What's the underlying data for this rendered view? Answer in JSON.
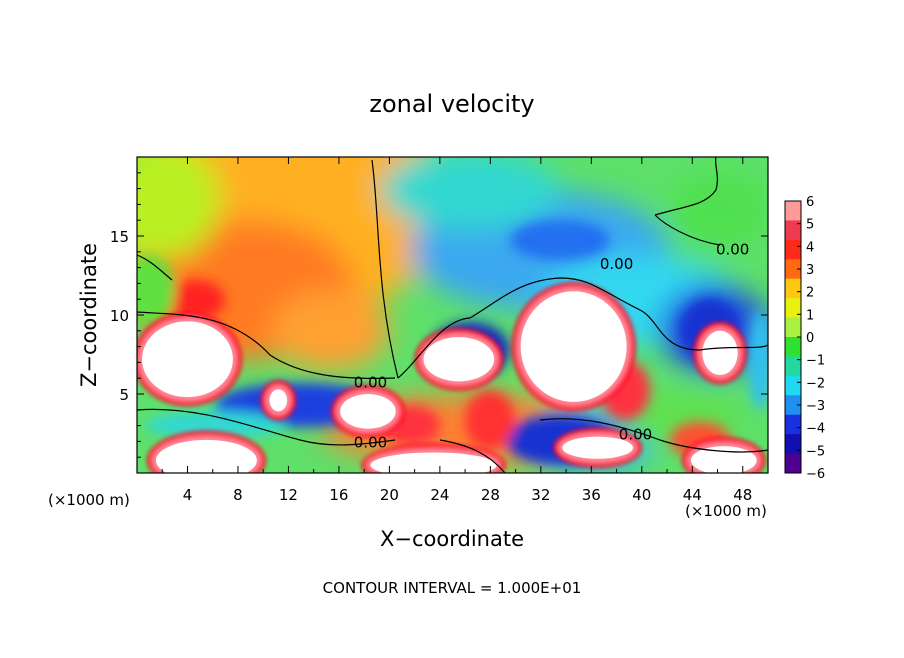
{
  "chart_data": {
    "type": "heatmap",
    "title": "zonal velocity",
    "xlabel": "X−coordinate",
    "ylabel": "Z−coordinate",
    "x_unit_left": "(×1000 m)",
    "x_unit_right": "(×1000 m)",
    "footer": "CONTOUR INTERVAL = 1.000E+01",
    "xlim": [
      0,
      50
    ],
    "ylim": [
      0,
      20
    ],
    "x_ticks": [
      4,
      8,
      12,
      16,
      20,
      24,
      28,
      32,
      36,
      40,
      44,
      48
    ],
    "y_ticks": [
      5,
      10,
      15
    ],
    "colorbar": {
      "labels": [
        "6",
        "5",
        "4",
        "3",
        "2",
        "1",
        "0",
        "−1",
        "−2",
        "−3",
        "−4",
        "−5",
        "−6"
      ],
      "levels": [
        6,
        5,
        4,
        3,
        2,
        1,
        0,
        -1,
        -2,
        -3,
        -4,
        -5,
        -6
      ],
      "colors": [
        "#ff9a9a",
        "#f03a50",
        "#ff2a1a",
        "#ff6a10",
        "#ffc810",
        "#e8f010",
        "#aaf040",
        "#30e030",
        "#20d8a0",
        "#20d8f0",
        "#2090f0",
        "#1830e0",
        "#1010b0",
        "#500090"
      ]
    },
    "contour_labels": [
      {
        "text": "0.00",
        "x": 18.5,
        "y": 5.7
      },
      {
        "text": "0.00",
        "x": 18.5,
        "y": 1.9
      },
      {
        "text": "0.00",
        "x": 38.0,
        "y": 13.2
      },
      {
        "text": "0.00",
        "x": 47.2,
        "y": 14.1
      },
      {
        "text": "0.00",
        "x": 39.5,
        "y": 2.4
      }
    ],
    "saturated_regions": [
      {
        "sign": "positive",
        "cx": 4.0,
        "cy": 7.2,
        "rx": 3.6,
        "ry": 2.4
      },
      {
        "sign": "positive",
        "cx": 34.6,
        "cy": 8.0,
        "rx": 4.2,
        "ry": 3.5
      },
      {
        "sign": "positive",
        "cx": 25.5,
        "cy": 7.2,
        "rx": 2.8,
        "ry": 1.4
      },
      {
        "sign": "positive",
        "cx": 18.3,
        "cy": 3.9,
        "rx": 2.2,
        "ry": 1.1
      },
      {
        "sign": "positive",
        "cx": 5.5,
        "cy": 0.8,
        "rx": 4.0,
        "ry": 1.3
      },
      {
        "sign": "positive",
        "cx": 23.5,
        "cy": 0.5,
        "rx": 5.0,
        "ry": 0.8
      },
      {
        "sign": "positive",
        "cx": 46.2,
        "cy": 7.6,
        "rx": 1.4,
        "ry": 1.4
      },
      {
        "sign": "positive",
        "cx": 11.2,
        "cy": 4.6,
        "rx": 0.7,
        "ry": 0.7
      },
      {
        "sign": "positive",
        "cx": 36.5,
        "cy": 1.6,
        "rx": 2.8,
        "ry": 0.7
      },
      {
        "sign": "positive",
        "cx": 46.5,
        "cy": 0.8,
        "rx": 2.6,
        "ry": 0.9
      }
    ]
  }
}
